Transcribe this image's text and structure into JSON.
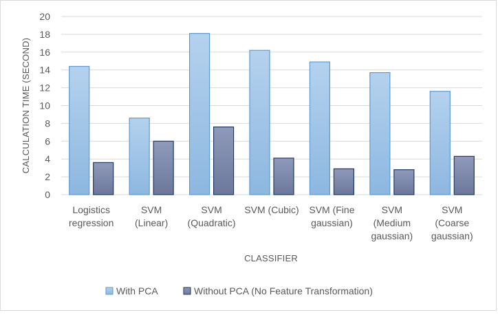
{
  "chart_data": {
    "type": "bar",
    "xlabel": "CLASSIFIER",
    "ylabel": "CALCULATION TIME (SECOND)",
    "ylim": [
      0,
      20
    ],
    "ytick_step": 2,
    "grid": true,
    "legend_position": "bottom",
    "categories": [
      [
        "Logistics",
        "regression"
      ],
      [
        "SVM",
        "(Linear)"
      ],
      [
        "SVM",
        "(Quadratic)"
      ],
      [
        "SVM (Cubic)"
      ],
      [
        "SVM (Fine",
        "gaussian)"
      ],
      [
        "SVM",
        "(Medium",
        "gaussian)"
      ],
      [
        "SVM",
        "(Coarse",
        "gaussian)"
      ]
    ],
    "series": [
      {
        "name": "With PCA",
        "color": "#9dc3e6",
        "stroke": "#5b9bd5",
        "values": [
          14.4,
          8.6,
          18.1,
          16.2,
          14.9,
          13.7,
          11.6
        ]
      },
      {
        "name": "Without PCA (No Feature Transformation)",
        "color": "#7f8bad",
        "stroke": "#203864",
        "values": [
          3.6,
          6.0,
          7.6,
          4.1,
          2.9,
          2.8,
          4.3
        ]
      }
    ]
  }
}
